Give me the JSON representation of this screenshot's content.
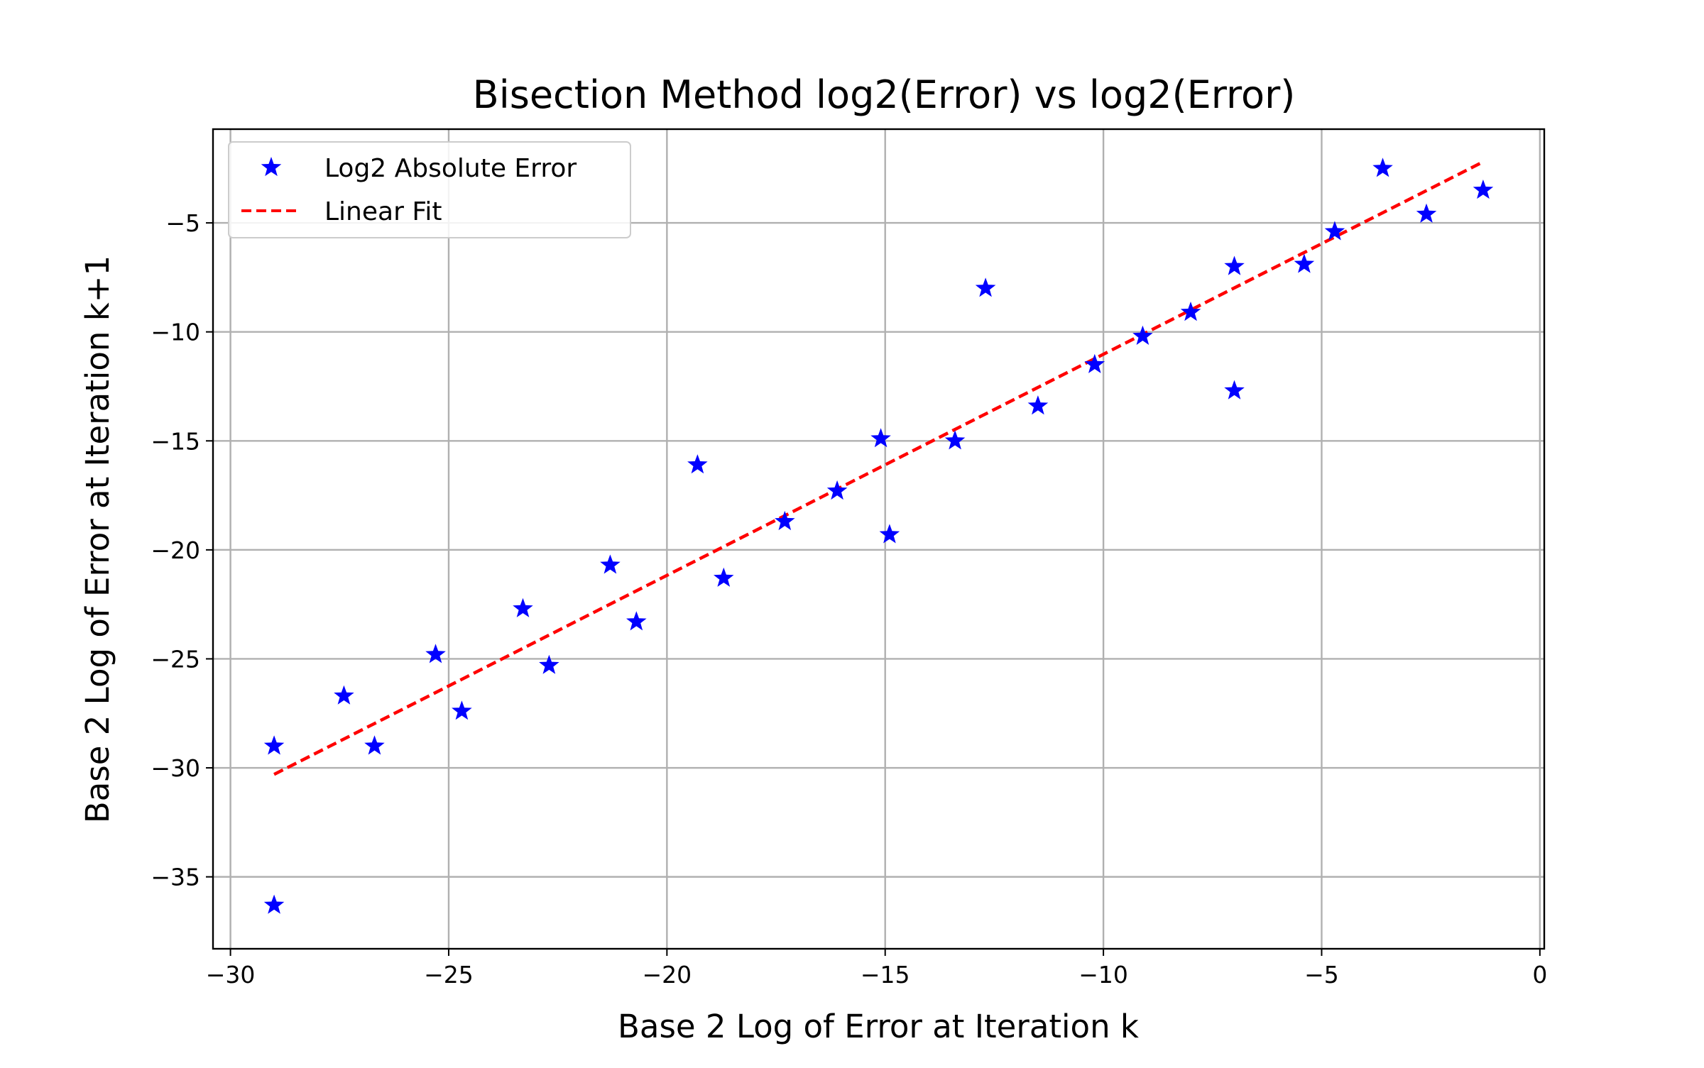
{
  "chart_data": {
    "type": "scatter",
    "title": "Bisection Method log2(Error) vs log2(Error)",
    "xlabel": "Base 2 Log of Error at Iteration k",
    "ylabel": "Base 2 Log of Error at Iteration k+1",
    "xlim": [
      -30.4,
      0.1
    ],
    "ylim": [
      -38.3,
      -0.7
    ],
    "xticks": [
      -30,
      -25,
      -20,
      -15,
      -10,
      -5,
      0
    ],
    "yticks": [
      -35,
      -30,
      -25,
      -20,
      -15,
      -10,
      -5
    ],
    "xtick_labels": [
      "−30",
      "−25",
      "−20",
      "−15",
      "−10",
      "−5",
      "0"
    ],
    "ytick_labels": [
      "−35",
      "−30",
      "−25",
      "−20",
      "−15",
      "−10",
      "−5"
    ],
    "grid": true,
    "legend_position": "top-left",
    "series": [
      {
        "name": "Log2 Absolute Error",
        "kind": "scatter",
        "marker": "star",
        "color": "#0000ff",
        "points": [
          [
            -29.0,
            -29.0
          ],
          [
            -29.0,
            -36.3
          ],
          [
            -27.4,
            -26.7
          ],
          [
            -26.7,
            -29.0
          ],
          [
            -25.3,
            -24.8
          ],
          [
            -24.7,
            -27.4
          ],
          [
            -23.3,
            -22.7
          ],
          [
            -22.7,
            -25.3
          ],
          [
            -21.3,
            -20.7
          ],
          [
            -20.7,
            -23.3
          ],
          [
            -19.3,
            -16.1
          ],
          [
            -18.7,
            -21.3
          ],
          [
            -17.3,
            -18.7
          ],
          [
            -16.1,
            -17.3
          ],
          [
            -15.1,
            -14.9
          ],
          [
            -14.9,
            -19.3
          ],
          [
            -13.4,
            -15.0
          ],
          [
            -12.7,
            -8.0
          ],
          [
            -11.5,
            -13.4
          ],
          [
            -10.2,
            -11.5
          ],
          [
            -9.1,
            -10.2
          ],
          [
            -8.0,
            -9.1
          ],
          [
            -7.0,
            -7.0
          ],
          [
            -7.0,
            -12.7
          ],
          [
            -5.4,
            -6.9
          ],
          [
            -4.7,
            -5.4
          ],
          [
            -3.6,
            -2.5
          ],
          [
            -2.6,
            -4.6
          ],
          [
            -1.3,
            -3.5
          ]
        ]
      },
      {
        "name": "Linear Fit",
        "kind": "line",
        "style": "dashed",
        "color": "#ff0000",
        "points": [
          [
            -29.0,
            -30.3
          ],
          [
            -1.3,
            -2.2
          ]
        ]
      }
    ]
  }
}
